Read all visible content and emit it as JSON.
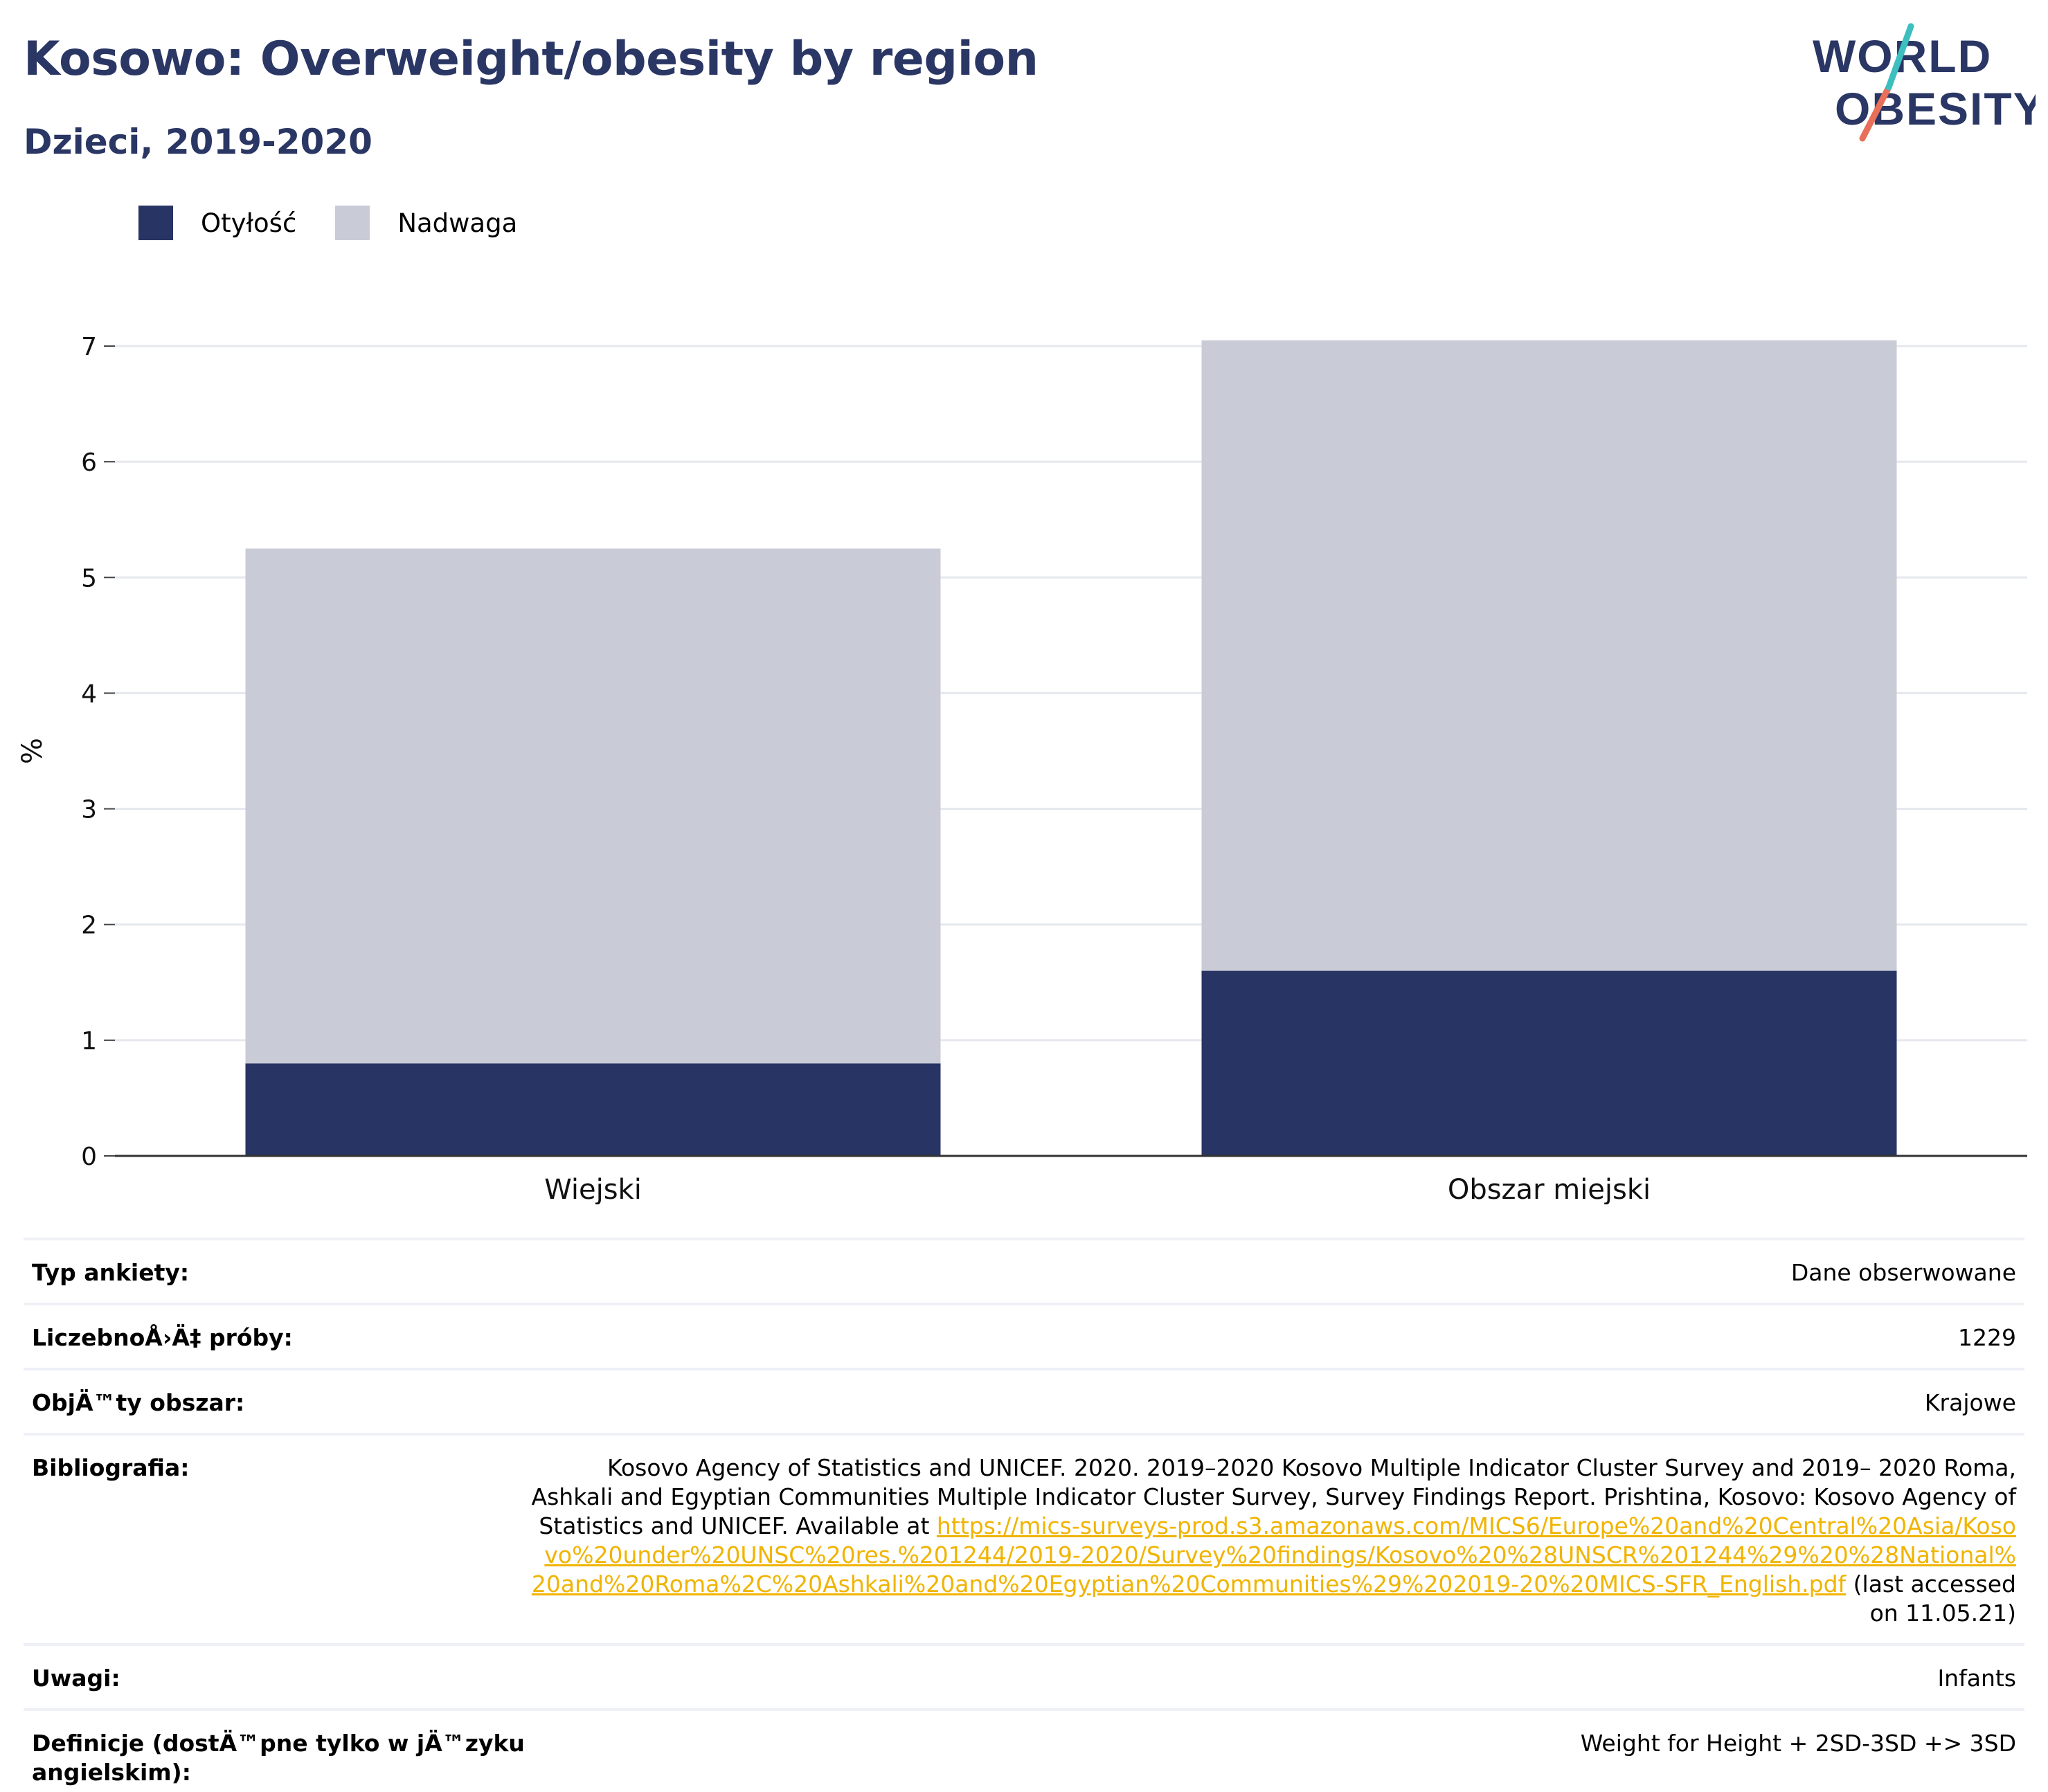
{
  "header": {
    "title": "Kosowo: Overweight/obesity by region",
    "subtitle": "Dzieci, 2019-2020",
    "logo_line1": "WORLD",
    "logo_line2": "OBESITY"
  },
  "colors": {
    "title": "#2a3664",
    "obesity": "#283464",
    "overweight": "#c9ccd7",
    "gridline": "#e6e8ef",
    "axis": "#333333",
    "link": "#f0b400",
    "logo_teal": "#3dbfbf",
    "logo_coral": "#e8705a"
  },
  "legend": {
    "items": [
      {
        "label": "Otyłość",
        "color": "#283464"
      },
      {
        "label": "Nadwaga",
        "color": "#c9ccd7"
      }
    ]
  },
  "chart_data": {
    "type": "bar",
    "stacked": true,
    "categories": [
      "Wiejski",
      "Obszar miejski"
    ],
    "series": [
      {
        "name": "Otyłość",
        "values": [
          0.8,
          1.6
        ],
        "color": "#283464"
      },
      {
        "name": "Nadwaga",
        "values": [
          4.45,
          5.45
        ],
        "color": "#c9ccd7"
      }
    ],
    "ylabel": "%",
    "ylim": [
      0,
      7
    ],
    "yticks": [
      0,
      1,
      2,
      3,
      4,
      5,
      6,
      7
    ],
    "grid": true,
    "legend_position": "top-left"
  },
  "meta": {
    "rows": [
      {
        "label": "Typ ankiety:",
        "value": "Dane obserwowane"
      },
      {
        "label": "LiczebnoÅ›Ä‡ próby:",
        "value": "1229"
      },
      {
        "label": "ObjÄ™ty obszar:",
        "value": "Krajowe"
      },
      {
        "label": "Bibliografia:",
        "value": ""
      },
      {
        "label": "Uwagi:",
        "value": "Infants"
      },
      {
        "label": "Definicje (dostÄ™pne tylko w jÄ™zyku angielskim):",
        "value": "Weight for Height + 2SD-3SD +> 3SD"
      }
    ],
    "biblio_text": "Kosovo Agency of Statistics and UNICEF. 2020. 2019–2020 Kosovo Multiple Indicator Cluster Survey and 2019– 2020 Roma, Ashkali and Egyptian Communities Multiple Indicator Cluster Survey, Survey Findings Report. Prishtina, Kosovo: Kosovo Agency of Statistics and UNICEF. Available at ",
    "biblio_link": "https://mics-surveys-prod.s3.amazonaws.com/MICS6/Europe%20and%20Central%20Asia/Kosovo%20under%20UNSC%20res.%201244/2019-2020/Survey%20findings/Kosovo%20%28UNSCR%201244%29%20%28National%20and%20Roma%2C%20Ashkali%20and%20Egyptian%20Communities%29%202019-20%20MICS-SFR_English.pdf",
    "biblio_suffix": " (last accessed on 11.05.21)"
  }
}
